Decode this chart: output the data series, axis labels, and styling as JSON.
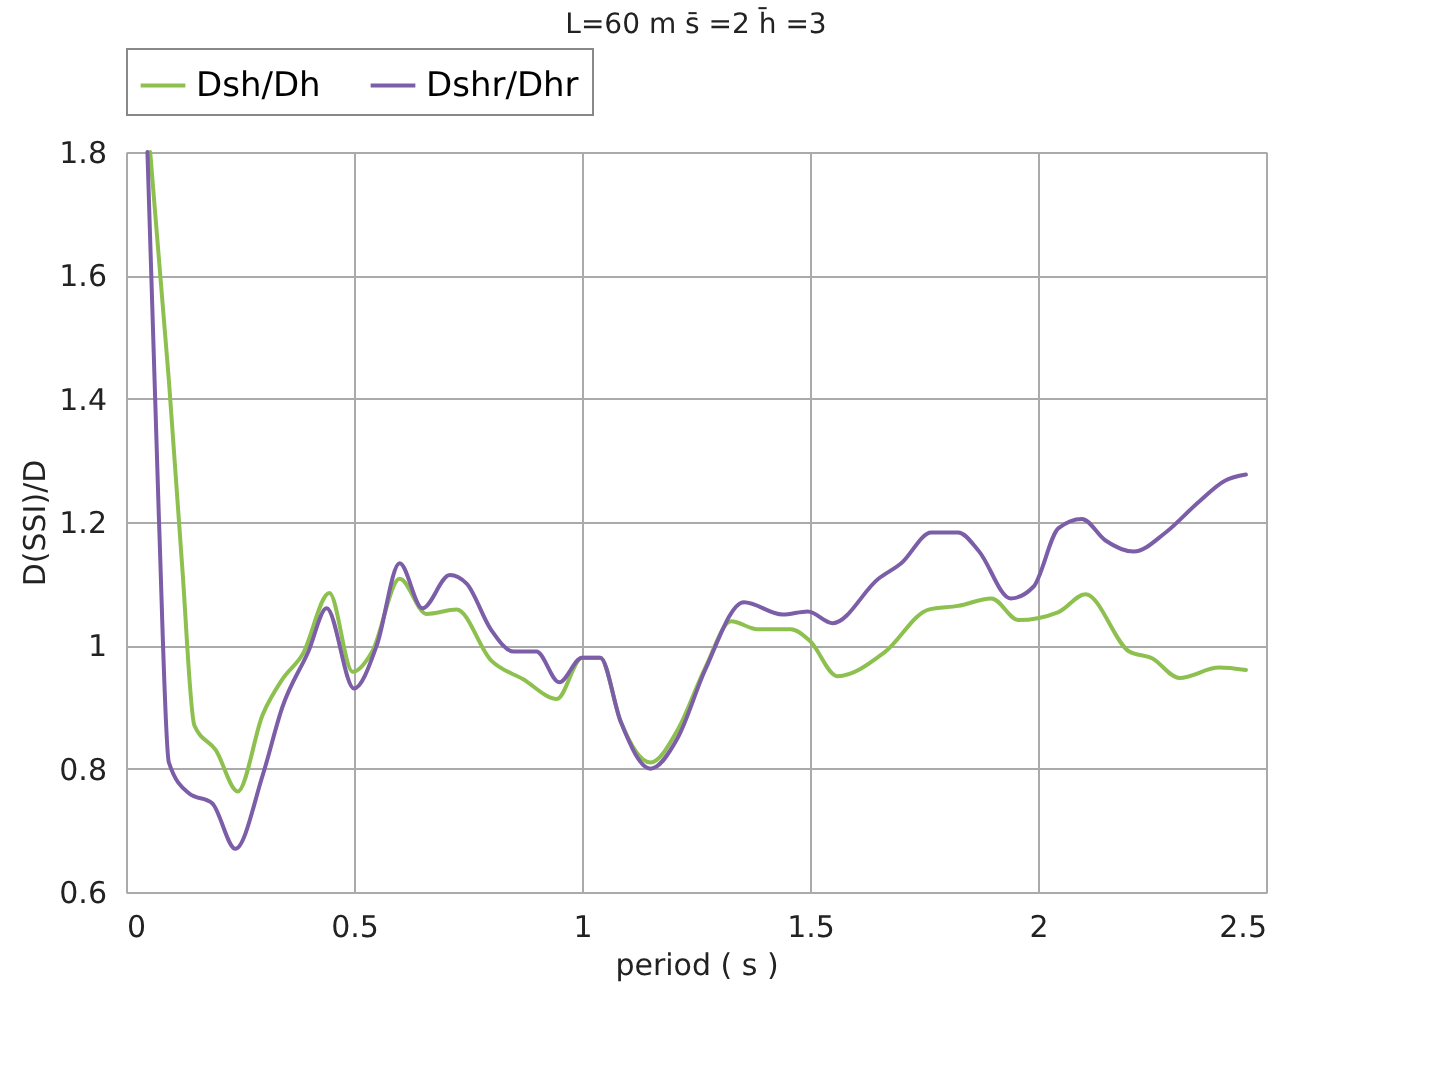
{
  "chart_data": {
    "type": "line",
    "title": "L=60 m  s̄ =2   h̄ =3",
    "xlabel": "period ( s )",
    "ylabel": "D(SSI)/D",
    "xlim": [
      0,
      2.5
    ],
    "xticks": [
      0,
      0.5,
      1,
      1.5,
      2,
      2.5
    ],
    "ylim": [
      0.6,
      1.8
    ],
    "yticks": [
      0.6,
      0.8,
      1,
      1.2,
      1.4,
      1.6,
      1.8
    ],
    "grid": true,
    "legend": "top",
    "marker": "none",
    "line_style": "solid",
    "series": [
      {
        "name": "Dsh/Dh",
        "color": "#8dc04f",
        "x": [
          0.053,
          0.094,
          0.123,
          0.15,
          0.197,
          0.245,
          0.3,
          0.343,
          0.387,
          0.446,
          0.497,
          0.54,
          0.6,
          0.659,
          0.725,
          0.8,
          0.871,
          0.945,
          1.0,
          1.04,
          1.085,
          1.15,
          1.21,
          1.27,
          1.327,
          1.385,
          1.458,
          1.5,
          1.56,
          1.664,
          1.76,
          1.825,
          1.898,
          1.957,
          2.045,
          2.104,
          2.2,
          2.25,
          2.31,
          2.397,
          2.456
        ],
        "values": [
          1.8,
          1.43,
          1.13,
          0.87,
          0.83,
          0.763,
          0.888,
          0.945,
          0.985,
          1.085,
          0.957,
          0.99,
          1.108,
          1.051,
          1.058,
          0.976,
          0.945,
          0.913,
          0.98,
          0.98,
          0.876,
          0.81,
          0.863,
          0.963,
          1.039,
          1.026,
          1.026,
          1.007,
          0.95,
          0.989,
          1.058,
          1.064,
          1.076,
          1.041,
          1.054,
          1.083,
          0.99,
          0.979,
          0.947,
          0.964,
          0.96
        ]
      },
      {
        "name": "Dshr/Dhr",
        "color": "#7b5ea7",
        "x": [
          0.047,
          0.072,
          0.094,
          0.138,
          0.189,
          0.24,
          0.3,
          0.343,
          0.4,
          0.44,
          0.5,
          0.55,
          0.6,
          0.65,
          0.71,
          0.747,
          0.8,
          0.85,
          0.9,
          0.95,
          1.0,
          1.04,
          1.085,
          1.15,
          1.21,
          1.27,
          1.355,
          1.44,
          1.495,
          1.55,
          1.65,
          1.7,
          1.766,
          1.825,
          1.87,
          1.94,
          1.99,
          2.045,
          2.096,
          2.148,
          2.21,
          2.28,
          2.353,
          2.41,
          2.456
        ],
        "values": [
          1.8,
          1.21,
          0.81,
          0.76,
          0.744,
          0.67,
          0.79,
          0.9,
          0.99,
          1.06,
          0.93,
          1.0,
          1.133,
          1.06,
          1.114,
          1.1,
          1.026,
          0.99,
          0.99,
          0.94,
          0.98,
          0.98,
          0.876,
          0.8,
          0.85,
          0.96,
          1.07,
          1.05,
          1.055,
          1.036,
          1.108,
          1.133,
          1.183,
          1.183,
          1.153,
          1.076,
          1.095,
          1.19,
          1.205,
          1.17,
          1.152,
          1.183,
          1.233,
          1.267,
          1.277
        ]
      }
    ]
  }
}
